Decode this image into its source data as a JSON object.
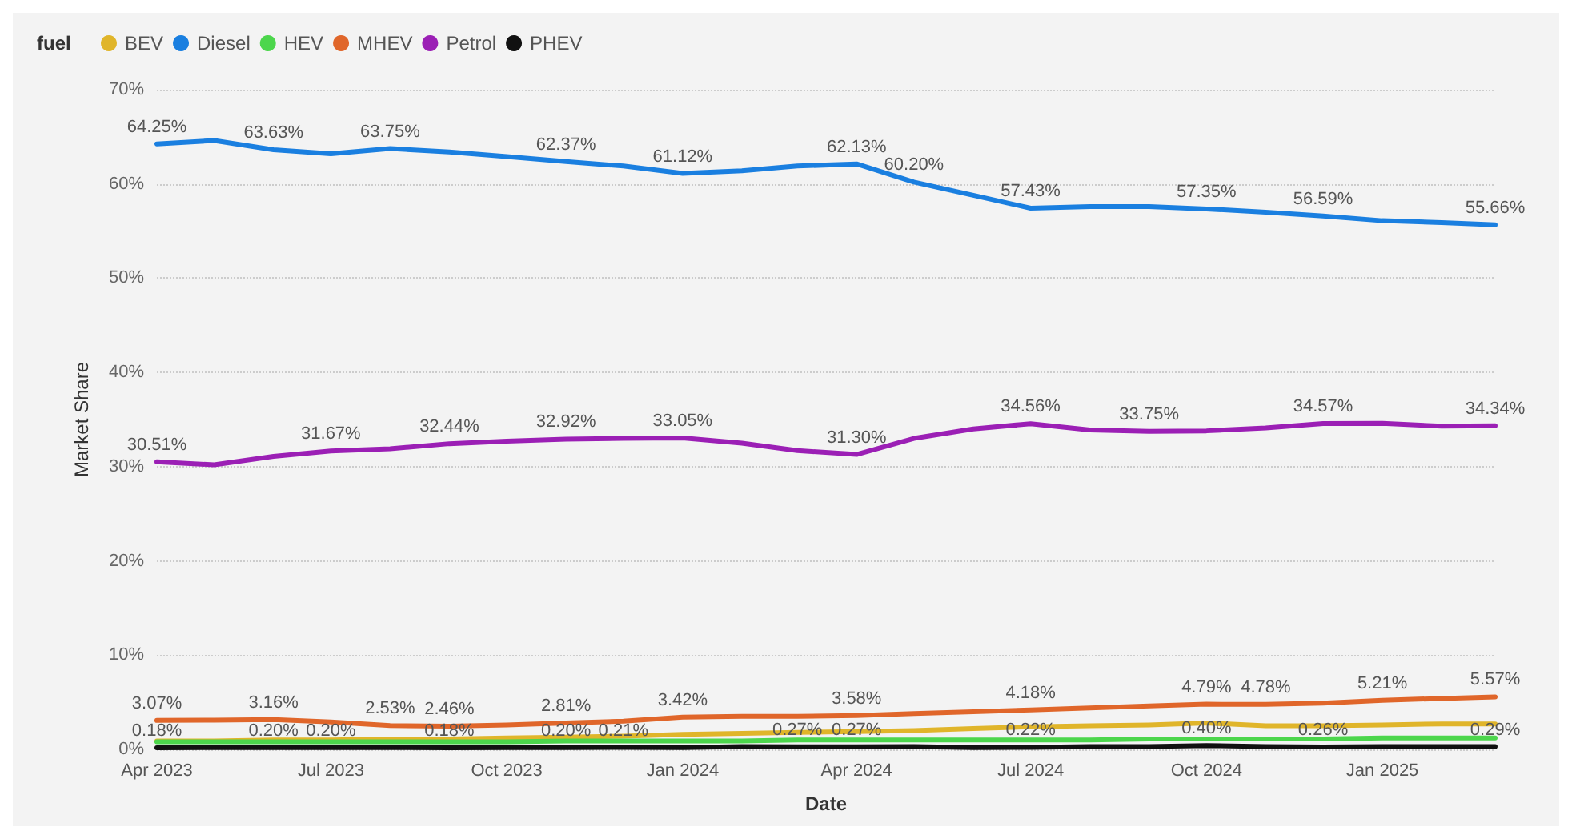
{
  "chart_data": {
    "type": "line",
    "xlabel": "Date",
    "ylabel": "Market Share",
    "legend_title": "fuel",
    "legend": "top left",
    "grid": "y",
    "x": [
      "2023-04",
      "2023-05",
      "2023-06",
      "2023-07",
      "2023-08",
      "2023-09",
      "2023-10",
      "2023-11",
      "2023-12",
      "2024-01",
      "2024-02",
      "2024-03",
      "2024-04",
      "2024-05",
      "2024-06",
      "2024-07",
      "2024-08",
      "2024-09",
      "2024-10",
      "2024-11",
      "2024-12",
      "2025-01",
      "2025-02",
      "2025-03"
    ],
    "xlim": [
      "2023-04",
      "2025-03"
    ],
    "xticks": [
      {
        "value": "2023-04",
        "label": "Apr 2023"
      },
      {
        "value": "2023-07",
        "label": "Jul 2023"
      },
      {
        "value": "2023-10",
        "label": "Oct 2023"
      },
      {
        "value": "2024-01",
        "label": "Jan 2024"
      },
      {
        "value": "2024-04",
        "label": "Apr 2024"
      },
      {
        "value": "2024-07",
        "label": "Jul 2024"
      },
      {
        "value": "2024-10",
        "label": "Oct 2024"
      },
      {
        "value": "2025-01",
        "label": "Jan 2025"
      }
    ],
    "ylim": [
      0,
      70
    ],
    "yticks": [
      {
        "value": 0,
        "label": "0%"
      },
      {
        "value": 10,
        "label": "10%"
      },
      {
        "value": 20,
        "label": "20%"
      },
      {
        "value": 30,
        "label": "30%"
      },
      {
        "value": 40,
        "label": "40%"
      },
      {
        "value": 50,
        "label": "50%"
      },
      {
        "value": 60,
        "label": "60%"
      },
      {
        "value": 70,
        "label": "70%"
      }
    ],
    "series": [
      {
        "name": "BEV",
        "color": "#e0b52a",
        "values": [
          0.9,
          0.9,
          1.0,
          1.0,
          1.1,
          1.1,
          1.2,
          1.3,
          1.4,
          1.6,
          1.7,
          1.8,
          1.9,
          2.0,
          2.2,
          2.4,
          2.5,
          2.6,
          2.8,
          2.5,
          2.5,
          2.6,
          2.7,
          2.7
        ]
      },
      {
        "name": "Diesel",
        "color": "#1a7fe0",
        "values": [
          64.25,
          64.6,
          63.63,
          63.2,
          63.75,
          63.4,
          62.9,
          62.37,
          61.9,
          61.12,
          61.4,
          61.9,
          62.13,
          60.2,
          58.8,
          57.43,
          57.6,
          57.6,
          57.35,
          57.0,
          56.59,
          56.1,
          55.9,
          55.66
        ],
        "value_labels": [
          "64.25%",
          null,
          "63.63%",
          null,
          "63.75%",
          null,
          null,
          "62.37%",
          null,
          "61.12%",
          null,
          null,
          "62.13%",
          "60.20%",
          null,
          "57.43%",
          null,
          null,
          "57.35%",
          null,
          "56.59%",
          null,
          null,
          "55.66%"
        ]
      },
      {
        "name": "HEV",
        "color": "#4cd64c",
        "values": [
          0.8,
          0.8,
          0.8,
          0.8,
          0.8,
          0.8,
          0.8,
          0.9,
          0.9,
          0.9,
          0.9,
          1.0,
          1.0,
          1.0,
          1.0,
          1.0,
          1.0,
          1.1,
          1.1,
          1.1,
          1.1,
          1.2,
          1.2,
          1.2
        ]
      },
      {
        "name": "MHEV",
        "color": "#e0662a",
        "values": [
          3.07,
          3.1,
          3.16,
          2.9,
          2.53,
          2.46,
          2.6,
          2.81,
          3.0,
          3.42,
          3.5,
          3.5,
          3.58,
          3.8,
          4.0,
          4.18,
          4.4,
          4.6,
          4.79,
          4.78,
          4.9,
          5.21,
          5.4,
          5.57
        ],
        "value_labels": [
          "3.07%",
          null,
          "3.16%",
          null,
          "2.53%",
          "2.46%",
          null,
          "2.81%",
          null,
          "3.42%",
          null,
          null,
          "3.58%",
          null,
          null,
          "4.18%",
          null,
          null,
          "4.79%",
          "4.78%",
          null,
          "5.21%",
          null,
          "5.57%"
        ]
      },
      {
        "name": "Petrol",
        "color": "#9b1fb5",
        "values": [
          30.51,
          30.2,
          31.1,
          31.67,
          31.9,
          32.44,
          32.7,
          32.92,
          33.0,
          33.05,
          32.5,
          31.7,
          31.3,
          33.0,
          34.0,
          34.56,
          33.9,
          33.75,
          33.8,
          34.1,
          34.57,
          34.6,
          34.3,
          34.34
        ],
        "value_labels": [
          "30.51%",
          null,
          null,
          "31.67%",
          null,
          "32.44%",
          null,
          "32.92%",
          null,
          "33.05%",
          null,
          null,
          "31.30%",
          null,
          null,
          "34.56%",
          null,
          "33.75%",
          null,
          null,
          "34.57%",
          null,
          null,
          "34.34%"
        ]
      },
      {
        "name": "PHEV",
        "color": "#111111",
        "values": [
          0.18,
          0.2,
          0.2,
          0.2,
          0.2,
          0.18,
          0.2,
          0.2,
          0.21,
          0.2,
          0.3,
          0.27,
          0.27,
          0.3,
          0.2,
          0.22,
          0.3,
          0.3,
          0.4,
          0.3,
          0.26,
          0.3,
          0.3,
          0.29
        ],
        "value_labels": [
          "0.18%",
          null,
          "0.20%",
          "0.20%",
          null,
          "0.18%",
          null,
          "0.20%",
          "0.21%",
          null,
          null,
          "0.27%",
          "0.27%",
          null,
          null,
          "0.22%",
          null,
          null,
          "0.40%",
          null,
          "0.26%",
          null,
          null,
          "0.29%"
        ]
      }
    ]
  }
}
